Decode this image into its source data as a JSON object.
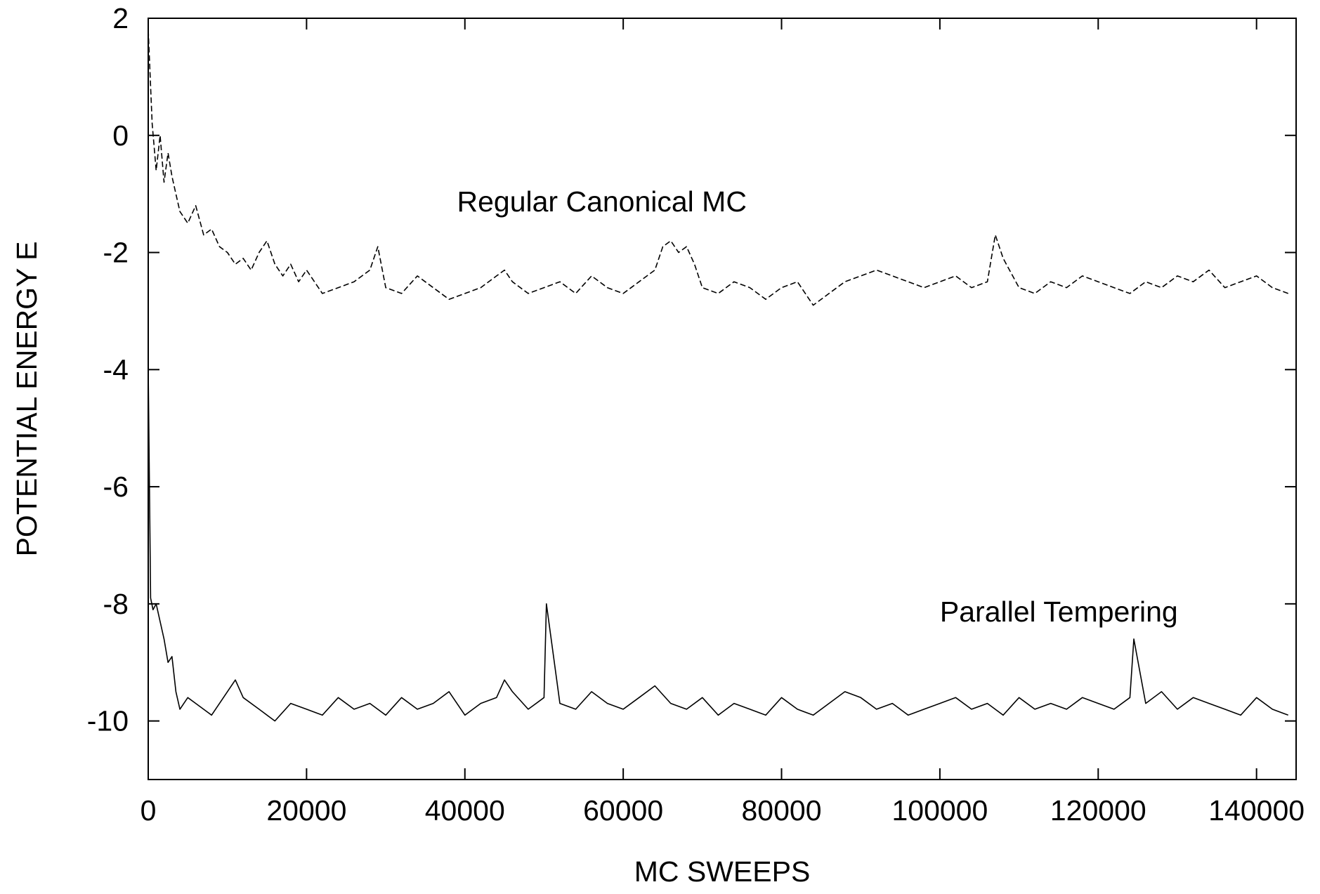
{
  "chart_data": {
    "type": "line",
    "title": "",
    "xlabel": "MC SWEEPS",
    "ylabel": "POTENTIAL ENERGY E",
    "xlim": [
      0,
      145000
    ],
    "ylim": [
      -11,
      2
    ],
    "x_ticks": [
      0,
      20000,
      40000,
      60000,
      80000,
      100000,
      120000,
      140000
    ],
    "y_ticks": [
      2,
      0,
      -2,
      -4,
      -6,
      -8,
      -10
    ],
    "grid": false,
    "legend": "none",
    "annotations": [
      {
        "text": "Regular Canonical MC",
        "x": 39000,
        "y": -1.3
      },
      {
        "text": "Parallel Tempering",
        "x": 100000,
        "y": -8.3
      }
    ],
    "series": [
      {
        "style": "dashed",
        "color": "#000000",
        "x": [
          0,
          500,
          1000,
          1500,
          2000,
          2500,
          3000,
          3500,
          4000,
          5000,
          6000,
          7000,
          8000,
          9000,
          10000,
          11000,
          12000,
          13000,
          14000,
          15000,
          16000,
          17000,
          18000,
          19000,
          20000,
          22000,
          24000,
          26000,
          28000,
          29000,
          30000,
          32000,
          34000,
          36000,
          38000,
          40000,
          42000,
          44000,
          45000,
          46000,
          48000,
          50000,
          52000,
          54000,
          56000,
          58000,
          60000,
          62000,
          64000,
          65000,
          66000,
          67000,
          68000,
          69000,
          70000,
          72000,
          74000,
          76000,
          78000,
          80000,
          82000,
          84000,
          86000,
          88000,
          90000,
          92000,
          94000,
          96000,
          98000,
          100000,
          102000,
          104000,
          106000,
          107000,
          108000,
          110000,
          112000,
          114000,
          116000,
          118000,
          120000,
          122000,
          124000,
          126000,
          128000,
          130000,
          132000,
          134000,
          136000,
          138000,
          140000,
          142000,
          144000
        ],
        "y": [
          1.8,
          0.2,
          -0.6,
          0.0,
          -0.8,
          -0.3,
          -0.7,
          -1.0,
          -1.3,
          -1.5,
          -1.2,
          -1.7,
          -1.6,
          -1.9,
          -2.0,
          -2.2,
          -2.1,
          -2.3,
          -2.0,
          -1.8,
          -2.2,
          -2.4,
          -2.2,
          -2.5,
          -2.3,
          -2.7,
          -2.6,
          -2.5,
          -2.3,
          -1.9,
          -2.6,
          -2.7,
          -2.4,
          -2.6,
          -2.8,
          -2.7,
          -2.6,
          -2.4,
          -2.3,
          -2.5,
          -2.7,
          -2.6,
          -2.5,
          -2.7,
          -2.4,
          -2.6,
          -2.7,
          -2.5,
          -2.3,
          -1.9,
          -1.8,
          -2.0,
          -1.9,
          -2.2,
          -2.6,
          -2.7,
          -2.5,
          -2.6,
          -2.8,
          -2.6,
          -2.5,
          -2.9,
          -2.7,
          -2.5,
          -2.4,
          -2.3,
          -2.4,
          -2.5,
          -2.6,
          -2.5,
          -2.4,
          -2.6,
          -2.5,
          -1.7,
          -2.1,
          -2.6,
          -2.7,
          -2.5,
          -2.6,
          -2.4,
          -2.5,
          -2.6,
          -2.7,
          -2.5,
          -2.6,
          -2.4,
          -2.5,
          -2.3,
          -2.6,
          -2.5,
          -2.4,
          -2.6,
          -2.7
        ]
      },
      {
        "style": "solid",
        "color": "#000000",
        "x": [
          0,
          300,
          600,
          1000,
          1500,
          2000,
          2500,
          3000,
          3500,
          4000,
          5000,
          6000,
          8000,
          10000,
          11000,
          12000,
          14000,
          16000,
          18000,
          20000,
          22000,
          24000,
          26000,
          28000,
          30000,
          32000,
          34000,
          36000,
          38000,
          40000,
          42000,
          44000,
          45000,
          46000,
          48000,
          50000,
          50300,
          52000,
          54000,
          56000,
          58000,
          60000,
          62000,
          64000,
          66000,
          68000,
          70000,
          72000,
          74000,
          76000,
          78000,
          80000,
          82000,
          84000,
          86000,
          88000,
          90000,
          92000,
          94000,
          96000,
          98000,
          100000,
          102000,
          104000,
          106000,
          108000,
          110000,
          112000,
          114000,
          116000,
          118000,
          120000,
          122000,
          124000,
          124500,
          126000,
          128000,
          130000,
          132000,
          134000,
          136000,
          138000,
          140000,
          142000,
          144000
        ],
        "y": [
          -4.0,
          -7.9,
          -8.1,
          -8.0,
          -8.3,
          -8.6,
          -9.0,
          -8.9,
          -9.5,
          -9.8,
          -9.6,
          -9.7,
          -9.9,
          -9.5,
          -9.3,
          -9.6,
          -9.8,
          -10.0,
          -9.7,
          -9.8,
          -9.9,
          -9.6,
          -9.8,
          -9.7,
          -9.9,
          -9.6,
          -9.8,
          -9.7,
          -9.5,
          -9.9,
          -9.7,
          -9.6,
          -9.3,
          -9.5,
          -9.8,
          -9.6,
          -8.0,
          -9.7,
          -9.8,
          -9.5,
          -9.7,
          -9.8,
          -9.6,
          -9.4,
          -9.7,
          -9.8,
          -9.6,
          -9.9,
          -9.7,
          -9.8,
          -9.9,
          -9.6,
          -9.8,
          -9.9,
          -9.7,
          -9.5,
          -9.6,
          -9.8,
          -9.7,
          -9.9,
          -9.8,
          -9.7,
          -9.6,
          -9.8,
          -9.7,
          -9.9,
          -9.6,
          -9.8,
          -9.7,
          -9.8,
          -9.6,
          -9.7,
          -9.8,
          -9.6,
          -8.6,
          -9.7,
          -9.5,
          -9.8,
          -9.6,
          -9.7,
          -9.8,
          -9.9,
          -9.6,
          -9.8,
          -9.9
        ]
      }
    ]
  }
}
